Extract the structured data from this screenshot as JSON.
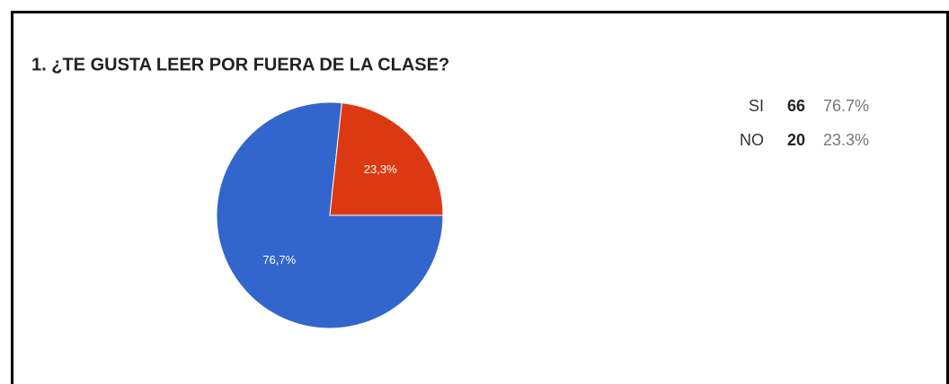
{
  "chart_data": {
    "type": "pie",
    "title": "1. ¿TE GUSTA LEER POR FUERA DE LA CLASE?",
    "categories": [
      "SI",
      "NO"
    ],
    "values": [
      76.7,
      23.3
    ],
    "value_labels": [
      "76,7%",
      "23,3%"
    ],
    "colors": [
      "#3366cc",
      "#dc3912"
    ],
    "counts": [
      66,
      20
    ],
    "percent_labels": [
      "76.7%",
      "23.3%"
    ]
  }
}
